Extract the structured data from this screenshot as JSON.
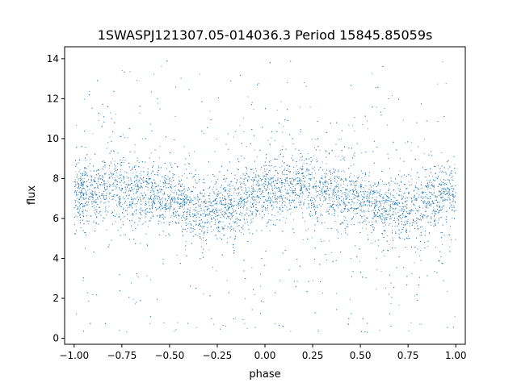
{
  "chart_data": {
    "type": "scatter",
    "title": "1SWASPJ121307.05-014036.3 Period 15845.85059s",
    "xlabel": "phase",
    "ylabel": "flux",
    "xlim": [
      -1.05,
      1.05
    ],
    "ylim": [
      -0.3,
      14.6
    ],
    "x_ticks": [
      -1.0,
      -0.75,
      -0.5,
      -0.25,
      0.0,
      0.25,
      0.5,
      0.75,
      1.0
    ],
    "x_tick_labels": [
      "−1.00",
      "−0.75",
      "−0.50",
      "−0.25",
      "0.00",
      "0.25",
      "0.50",
      "0.75",
      "1.00"
    ],
    "y_ticks": [
      0,
      2,
      4,
      6,
      8,
      10,
      12,
      14
    ],
    "y_tick_labels": [
      "0",
      "2",
      "4",
      "6",
      "8",
      "10",
      "12",
      "14"
    ],
    "grid": false,
    "legend": false,
    "marker_color": "#1f77b4",
    "series": [
      {
        "x": [
          -1.0,
          -0.9,
          -0.8,
          -0.7,
          -0.6,
          -0.5,
          -0.4,
          -0.3,
          -0.2,
          -0.1,
          0.0,
          0.1,
          0.2,
          0.3,
          0.4,
          0.5,
          0.6,
          0.7,
          0.8,
          0.9,
          1.0
        ],
        "y": [
          7.2,
          7.4,
          7.6,
          7.5,
          7.2,
          6.9,
          6.6,
          6.4,
          6.6,
          7.0,
          7.3,
          7.5,
          7.6,
          7.5,
          7.2,
          6.9,
          6.6,
          6.4,
          6.6,
          7.0,
          7.2
        ]
      }
    ]
  }
}
